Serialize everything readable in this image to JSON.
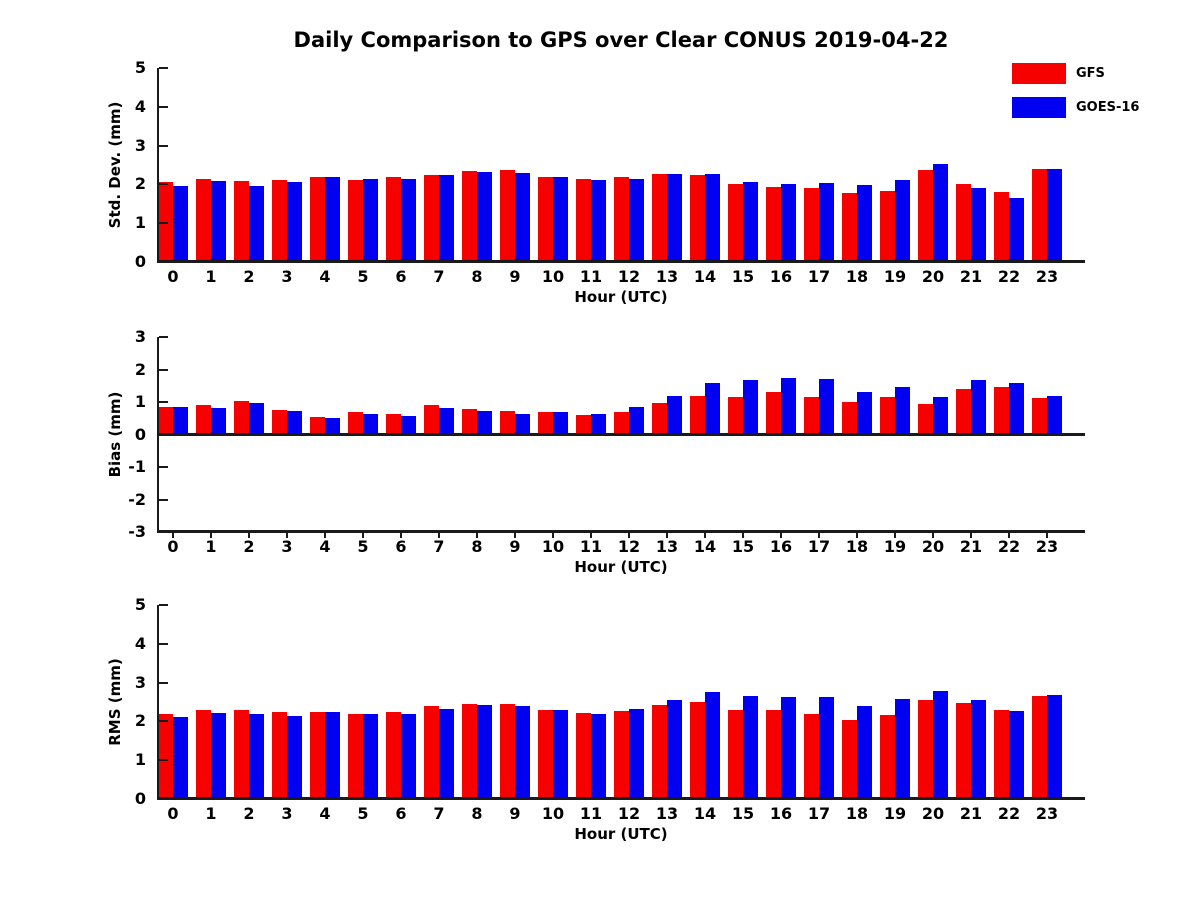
{
  "title": "Daily Comparison to GPS over Clear CONUS 2019-04-22",
  "legend": [
    {
      "label": "GFS",
      "color": "#f60000"
    },
    {
      "label": "GOES-16",
      "color": "#0000f0"
    }
  ],
  "colors": {
    "gfs": "#f60000",
    "goes16": "#0000f0",
    "axis": "#1a1a1a",
    "text": "#000000"
  },
  "chart_data": [
    {
      "id": "std-dev",
      "type": "bar",
      "ylabel": "Std. Dev. (mm)",
      "xlabel": "Hour (UTC)",
      "ylim": [
        0,
        5
      ],
      "yticks": [
        0,
        1,
        2,
        3,
        4,
        5
      ],
      "grid": false,
      "legend_position": "upper-right-outside",
      "categories": [
        "0",
        "1",
        "2",
        "3",
        "4",
        "5",
        "6",
        "7",
        "8",
        "9",
        "10",
        "11",
        "12",
        "13",
        "14",
        "15",
        "16",
        "17",
        "18",
        "19",
        "20",
        "21",
        "22",
        "23"
      ],
      "series": [
        {
          "name": "GFS",
          "color": "#f60000",
          "values": [
            2.05,
            2.15,
            2.08,
            2.11,
            2.19,
            2.12,
            2.2,
            2.24,
            2.35,
            2.36,
            2.2,
            2.15,
            2.18,
            2.28,
            2.24,
            2.01,
            1.93,
            1.9,
            1.78,
            1.83,
            2.36,
            2.02,
            1.8,
            2.4
          ]
        },
        {
          "name": "GOES-16",
          "color": "#0000f0",
          "values": [
            1.97,
            2.09,
            1.97,
            2.06,
            2.19,
            2.15,
            2.15,
            2.24,
            2.31,
            2.3,
            2.2,
            2.12,
            2.14,
            2.28,
            2.28,
            2.07,
            2.0,
            2.03,
            1.99,
            2.11,
            2.52,
            1.91,
            1.64,
            2.4
          ]
        }
      ]
    },
    {
      "id": "bias",
      "type": "bar",
      "ylabel": "Bias (mm)",
      "xlabel": "Hour (UTC)",
      "ylim": [
        -3,
        3
      ],
      "yticks": [
        -3,
        -2,
        -1,
        0,
        1,
        2,
        3
      ],
      "grid": false,
      "categories": [
        "0",
        "1",
        "2",
        "3",
        "4",
        "5",
        "6",
        "7",
        "8",
        "9",
        "10",
        "11",
        "12",
        "13",
        "14",
        "15",
        "16",
        "17",
        "18",
        "19",
        "20",
        "21",
        "22",
        "23"
      ],
      "series": [
        {
          "name": "GFS",
          "color": "#f60000",
          "values": [
            0.85,
            0.9,
            1.03,
            0.76,
            0.55,
            0.68,
            0.62,
            0.92,
            0.78,
            0.72,
            0.68,
            0.6,
            0.7,
            0.97,
            1.17,
            1.15,
            1.3,
            1.16,
            1.0,
            1.15,
            0.95,
            1.4,
            1.45,
            1.13
          ]
        },
        {
          "name": "GOES-16",
          "color": "#0000f0",
          "values": [
            0.85,
            0.83,
            0.97,
            0.72,
            0.5,
            0.63,
            0.58,
            0.83,
            0.72,
            0.64,
            0.68,
            0.62,
            0.85,
            1.2,
            1.6,
            1.68,
            1.73,
            1.7,
            1.32,
            1.47,
            1.15,
            1.67,
            1.58,
            1.2
          ]
        }
      ]
    },
    {
      "id": "rms",
      "type": "bar",
      "ylabel": "RMS (mm)",
      "xlabel": "Hour (UTC)",
      "ylim": [
        0,
        5
      ],
      "yticks": [
        0,
        1,
        2,
        3,
        4,
        5
      ],
      "grid": false,
      "categories": [
        "0",
        "1",
        "2",
        "3",
        "4",
        "5",
        "6",
        "7",
        "8",
        "9",
        "10",
        "11",
        "12",
        "13",
        "14",
        "15",
        "16",
        "17",
        "18",
        "19",
        "20",
        "21",
        "22",
        "23"
      ],
      "series": [
        {
          "name": "GFS",
          "color": "#f60000",
          "values": [
            2.19,
            2.3,
            2.3,
            2.23,
            2.23,
            2.2,
            2.24,
            2.4,
            2.45,
            2.45,
            2.3,
            2.22,
            2.28,
            2.43,
            2.5,
            2.29,
            2.29,
            2.2,
            2.03,
            2.16,
            2.54,
            2.48,
            2.3,
            2.65
          ]
        },
        {
          "name": "GOES-16",
          "color": "#0000f0",
          "values": [
            2.11,
            2.22,
            2.19,
            2.15,
            2.23,
            2.2,
            2.2,
            2.32,
            2.41,
            2.39,
            2.3,
            2.2,
            2.32,
            2.55,
            2.77,
            2.65,
            2.63,
            2.63,
            2.39,
            2.57,
            2.78,
            2.55,
            2.28,
            2.67
          ]
        }
      ]
    }
  ]
}
